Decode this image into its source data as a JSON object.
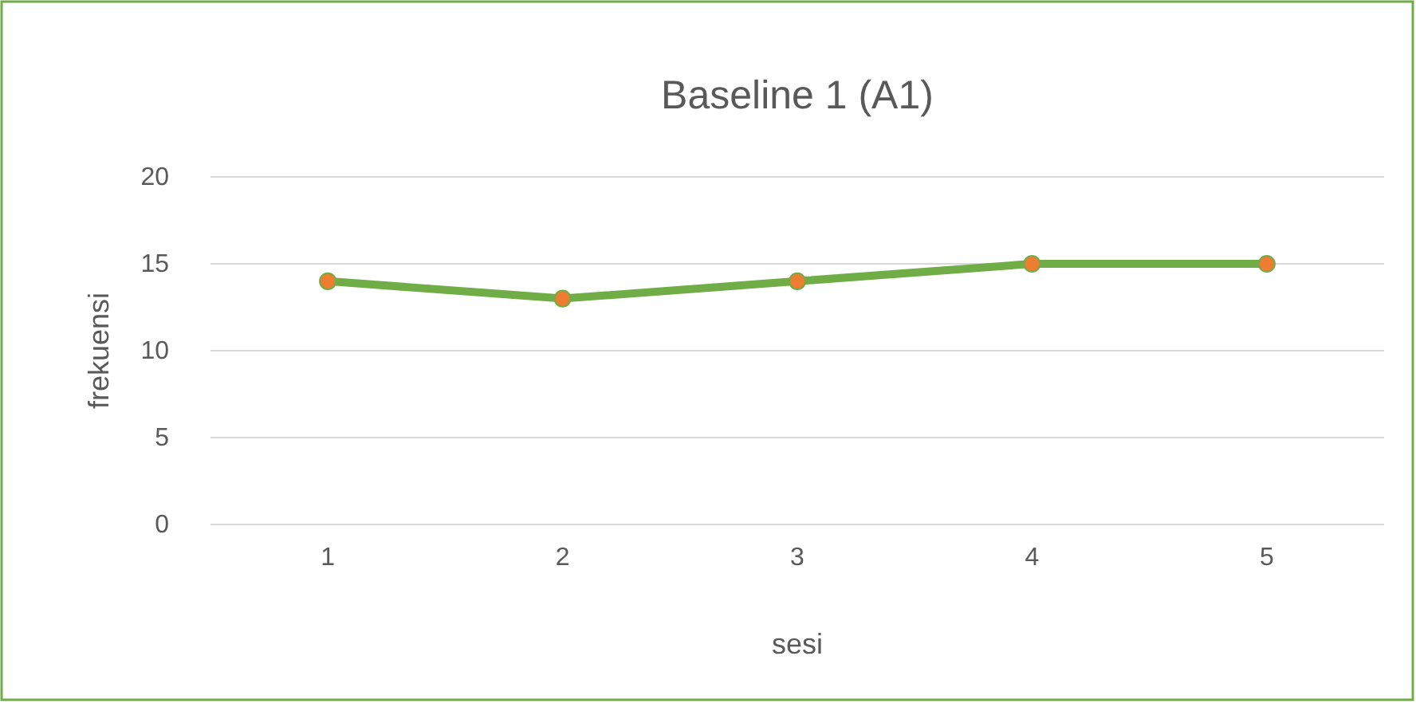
{
  "chart_data": {
    "type": "line",
    "title": "Baseline 1 (A1)",
    "xlabel": "sesi",
    "ylabel": "frekuensi",
    "categories": [
      "1",
      "2",
      "3",
      "4",
      "5"
    ],
    "series": [
      {
        "color": "#70ad47",
        "colors": [
          "#ed7d31",
          "#ed7d31",
          "#ed7d31",
          "#ed7d31",
          "#ed7d31"
        ],
        "values": [
          14,
          13,
          14,
          15,
          15
        ]
      }
    ],
    "ylim": [
      0,
      20
    ],
    "yticks": [
      0,
      5,
      10,
      15,
      20
    ],
    "grid": "y",
    "marker": "circle",
    "line_style": "solid"
  }
}
